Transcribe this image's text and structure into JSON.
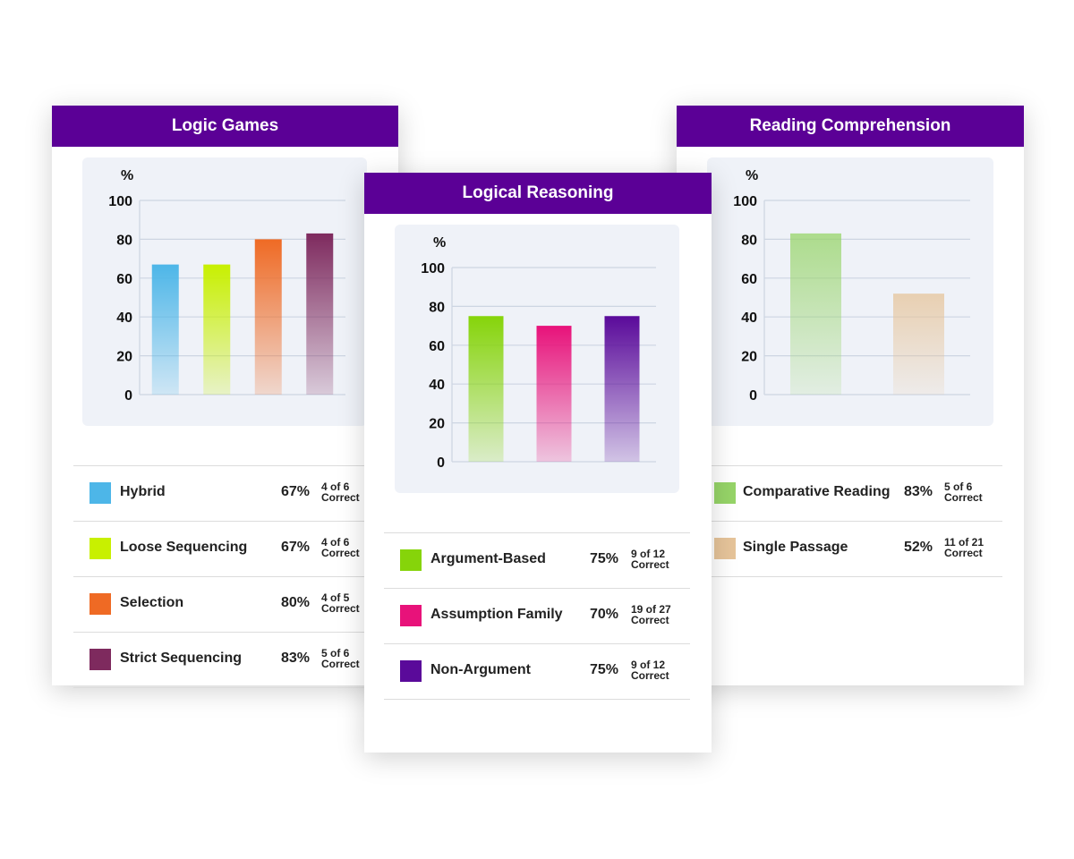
{
  "chart_data": [
    {
      "id": "logic-games",
      "type": "bar",
      "title": "Logic Games",
      "ylabel": "%",
      "ylim": [
        0,
        100
      ],
      "yticks": [
        0,
        20,
        40,
        60,
        80,
        100
      ],
      "categories": [
        "Hybrid",
        "Loose Sequencing",
        "Selection",
        "Strict Sequencing"
      ],
      "values": [
        67,
        67,
        80,
        83
      ],
      "colors": [
        "#4db6e8",
        "#c8f000",
        "#ef6a24",
        "#7e2a5e"
      ],
      "legend": [
        {
          "name": "Hybrid",
          "pct": "67%",
          "frac": "4 of 6",
          "correct": "Correct",
          "color": "#4db6e8"
        },
        {
          "name": "Loose Sequencing",
          "pct": "67%",
          "frac": "4 of 6",
          "correct": "Correct",
          "color": "#c8f000"
        },
        {
          "name": "Selection",
          "pct": "80%",
          "frac": "4 of 5",
          "correct": "Correct",
          "color": "#ef6a24"
        },
        {
          "name": "Strict Sequencing",
          "pct": "83%",
          "frac": "5 of 6",
          "correct": "Correct",
          "color": "#7e2a5e"
        }
      ]
    },
    {
      "id": "logical-reasoning",
      "type": "bar",
      "title": "Logical Reasoning",
      "ylabel": "%",
      "ylim": [
        0,
        100
      ],
      "yticks": [
        0,
        20,
        40,
        60,
        80,
        100
      ],
      "categories": [
        "Argument-Based",
        "Assumption Family",
        "Non-Argument"
      ],
      "values": [
        75,
        70,
        75
      ],
      "colors": [
        "#86d40a",
        "#e8127a",
        "#5a0a9a"
      ],
      "legend": [
        {
          "name": "Argument-Based",
          "pct": "75%",
          "frac": "9 of 12",
          "correct": "Correct",
          "color": "#86d40a"
        },
        {
          "name": "Assumption Family",
          "pct": "70%",
          "frac": "19 of 27",
          "correct": "Correct",
          "color": "#e8127a"
        },
        {
          "name": "Non-Argument",
          "pct": "75%",
          "frac": "9 of 12",
          "correct": "Correct",
          "color": "#5a0a9a"
        }
      ]
    },
    {
      "id": "reading-comprehension",
      "type": "bar",
      "title": "Reading Comprehension",
      "ylabel": "%",
      "ylim": [
        0,
        100
      ],
      "yticks": [
        0,
        20,
        40,
        60,
        80,
        100
      ],
      "categories": [
        "Comparative Reading",
        "Single Passage"
      ],
      "values": [
        83,
        52
      ],
      "colors": [
        "#96d468",
        "#e6c49a"
      ],
      "legend": [
        {
          "name": "Comparative Reading",
          "pct": "83%",
          "frac": "5 of 6",
          "correct": "Correct",
          "color": "#96d468"
        },
        {
          "name": "Single Passage",
          "pct": "52%",
          "frac": "11 of 21",
          "correct": "Correct",
          "color": "#e6c49a"
        }
      ]
    }
  ]
}
